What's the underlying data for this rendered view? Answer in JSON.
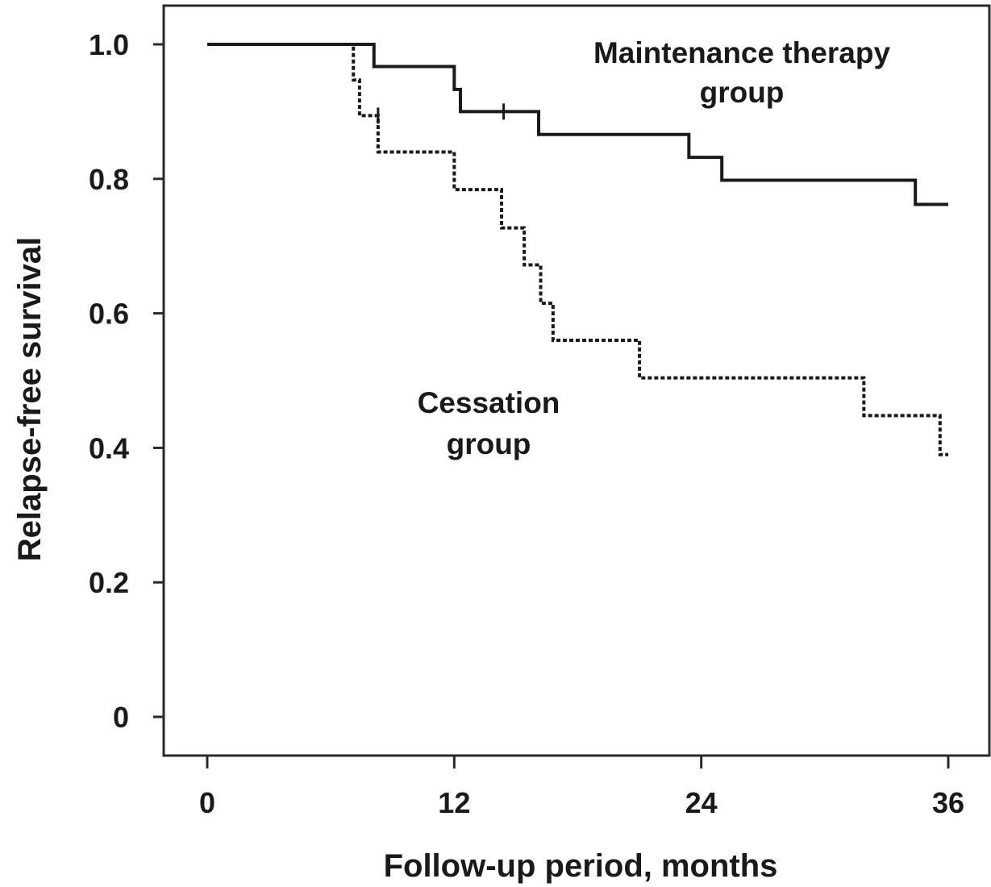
{
  "chart_data": {
    "type": "line",
    "title": "",
    "xlabel": "Follow-up period, months",
    "ylabel": "Relapse-free survival",
    "xlim": [
      0,
      36
    ],
    "ylim": [
      0,
      1.0
    ],
    "x_ticks": [
      0,
      12,
      24,
      36
    ],
    "x_tick_labels": [
      "0",
      "12",
      "24",
      "36"
    ],
    "y_ticks": [
      0,
      0.2,
      0.4,
      0.6,
      0.8,
      1.0
    ],
    "y_tick_labels": [
      "0",
      "0.2",
      "0.4",
      "0.6",
      "0.8",
      "1.0"
    ],
    "grid": false,
    "series": [
      {
        "name_lines": [
          "Maintenance therapy",
          "group"
        ],
        "style": "solid",
        "color": "#1a1a1a",
        "steps": [
          {
            "x": 0,
            "y": 1.0
          },
          {
            "x": 8.1,
            "y": 0.967
          },
          {
            "x": 12.0,
            "y": 0.933
          },
          {
            "x": 12.3,
            "y": 0.9
          },
          {
            "x": 16.1,
            "y": 0.866
          },
          {
            "x": 23.4,
            "y": 0.832
          },
          {
            "x": 25.0,
            "y": 0.798
          },
          {
            "x": 34.4,
            "y": 0.762
          }
        ],
        "end_x": 36,
        "censored": [
          {
            "x": 14.4,
            "y": 0.9
          }
        ]
      },
      {
        "name_lines": [
          "Cessation",
          "group"
        ],
        "style": "dotted",
        "color": "#1a1a1a",
        "steps": [
          {
            "x": 0,
            "y": 1.0
          },
          {
            "x": 7.1,
            "y": 0.947
          },
          {
            "x": 7.4,
            "y": 0.894
          },
          {
            "x": 8.3,
            "y": 0.84
          },
          {
            "x": 12.0,
            "y": 0.784
          },
          {
            "x": 14.3,
            "y": 0.727
          },
          {
            "x": 15.4,
            "y": 0.672
          },
          {
            "x": 16.2,
            "y": 0.615
          },
          {
            "x": 16.8,
            "y": 0.56
          },
          {
            "x": 21.0,
            "y": 0.504
          },
          {
            "x": 31.9,
            "y": 0.448
          },
          {
            "x": 35.6,
            "y": 0.39
          }
        ],
        "end_x": 36,
        "censored": [
          {
            "x": 8.3,
            "y": 0.894
          }
        ]
      }
    ]
  }
}
